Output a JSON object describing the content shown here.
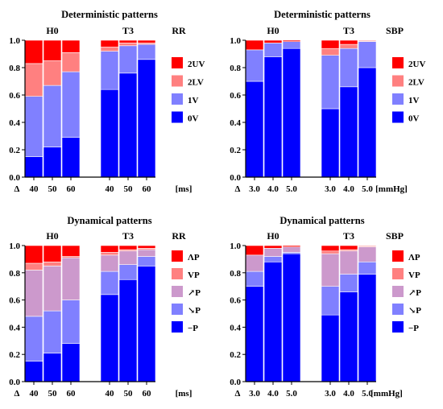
{
  "chart_data": [
    {
      "type": "bar",
      "title": "Deterministic patterns",
      "signal": "RR",
      "unit": "[ms]",
      "delta_label": "Δ",
      "group_labels": [
        "H0",
        "T3"
      ],
      "categories": [
        "40",
        "50",
        "60",
        "40",
        "50",
        "60"
      ],
      "ylim": [
        0,
        1.0
      ],
      "yticks": [
        "0.0",
        "0.2",
        "0.4",
        "0.6",
        "0.8",
        "1.0"
      ],
      "legend": [
        "2UV",
        "2LV",
        "1V",
        "0V"
      ],
      "colors": [
        "#ff0000",
        "#ff8080",
        "#8080ff",
        "#0000ff"
      ],
      "series": [
        {
          "name": "0V",
          "values": [
            0.15,
            0.22,
            0.29,
            0.64,
            0.76,
            0.86
          ]
        },
        {
          "name": "1V",
          "values": [
            0.44,
            0.45,
            0.48,
            0.28,
            0.2,
            0.11
          ]
        },
        {
          "name": "2LV",
          "values": [
            0.24,
            0.18,
            0.14,
            0.03,
            0.02,
            0.01
          ]
        },
        {
          "name": "2UV",
          "values": [
            0.17,
            0.15,
            0.09,
            0.05,
            0.02,
            0.02
          ]
        }
      ]
    },
    {
      "type": "bar",
      "title": "Deterministic patterns",
      "signal": "SBP",
      "unit": "[mmHg]",
      "delta_label": "Δ",
      "group_labels": [
        "H0",
        "T3"
      ],
      "categories": [
        "3.0",
        "4.0",
        "5.0",
        "3.0",
        "4.0",
        "5.0"
      ],
      "ylim": [
        0,
        1.0
      ],
      "yticks": [
        "0.0",
        "0.2",
        "0.4",
        "0.6",
        "0.8",
        "1.0"
      ],
      "legend": [
        "2UV",
        "2LV",
        "1V",
        "0V"
      ],
      "colors": [
        "#ff0000",
        "#ff8080",
        "#8080ff",
        "#0000ff"
      ],
      "series": [
        {
          "name": "0V",
          "values": [
            0.7,
            0.88,
            0.94,
            0.5,
            0.66,
            0.8
          ]
        },
        {
          "name": "1V",
          "values": [
            0.23,
            0.1,
            0.05,
            0.39,
            0.28,
            0.19
          ]
        },
        {
          "name": "2LV",
          "values": [
            0.0,
            0.0,
            0.0,
            0.05,
            0.03,
            0.005
          ]
        },
        {
          "name": "2UV",
          "values": [
            0.07,
            0.02,
            0.01,
            0.06,
            0.03,
            0.005
          ]
        }
      ]
    },
    {
      "type": "bar",
      "title": "Dynamical patterns",
      "signal": "RR",
      "unit": "[ms]",
      "delta_label": "Δ",
      "group_labels": [
        "H0",
        "T3"
      ],
      "categories": [
        "40",
        "50",
        "60",
        "40",
        "50",
        "60"
      ],
      "ylim": [
        0,
        1.0
      ],
      "yticks": [
        "0.0",
        "0.2",
        "0.4",
        "0.6",
        "0.8",
        "1.0"
      ],
      "legend": [
        "ΛP",
        "VP",
        "↗P",
        "↘P",
        "−P"
      ],
      "colors": [
        "#ff0000",
        "#ff8080",
        "#cc99cc",
        "#8080ff",
        "#0000ff"
      ],
      "series": [
        {
          "name": "−P",
          "values": [
            0.15,
            0.21,
            0.28,
            0.64,
            0.75,
            0.85
          ]
        },
        {
          "name": "↘P",
          "values": [
            0.33,
            0.31,
            0.32,
            0.17,
            0.11,
            0.07
          ]
        },
        {
          "name": "↗P",
          "values": [
            0.34,
            0.33,
            0.31,
            0.12,
            0.1,
            0.05
          ]
        },
        {
          "name": "VP",
          "values": [
            0.05,
            0.03,
            0.01,
            0.02,
            0.01,
            0.01
          ]
        },
        {
          "name": "ΛP",
          "values": [
            0.13,
            0.12,
            0.08,
            0.05,
            0.03,
            0.02
          ]
        }
      ]
    },
    {
      "type": "bar",
      "title": "Dynamical patterns",
      "signal": "SBP",
      "unit": "[mmHg]",
      "delta_label": "Δ",
      "group_labels": [
        "H0",
        "T3"
      ],
      "categories": [
        "3.0",
        "4.0",
        "5.0",
        "3.0",
        "4.0",
        "5.0"
      ],
      "ylim": [
        0,
        1.0
      ],
      "yticks": [
        "0.0",
        "0.2",
        "0.4",
        "0.6",
        "0.8",
        "1.0"
      ],
      "legend": [
        "ΛP",
        "VP",
        "↗P",
        "↘P",
        "−P"
      ],
      "colors": [
        "#ff0000",
        "#ff8080",
        "#cc99cc",
        "#8080ff",
        "#0000ff"
      ],
      "series": [
        {
          "name": "−P",
          "values": [
            0.7,
            0.88,
            0.94,
            0.49,
            0.66,
            0.79
          ]
        },
        {
          "name": "↘P",
          "values": [
            0.11,
            0.04,
            0.01,
            0.21,
            0.13,
            0.09
          ]
        },
        {
          "name": "↗P",
          "values": [
            0.12,
            0.06,
            0.04,
            0.24,
            0.17,
            0.11
          ]
        },
        {
          "name": "VP",
          "values": [
            0.0,
            0.0,
            0.0,
            0.02,
            0.01,
            0.005
          ]
        },
        {
          "name": "ΛP",
          "values": [
            0.07,
            0.02,
            0.01,
            0.04,
            0.03,
            0.005
          ]
        }
      ]
    }
  ]
}
